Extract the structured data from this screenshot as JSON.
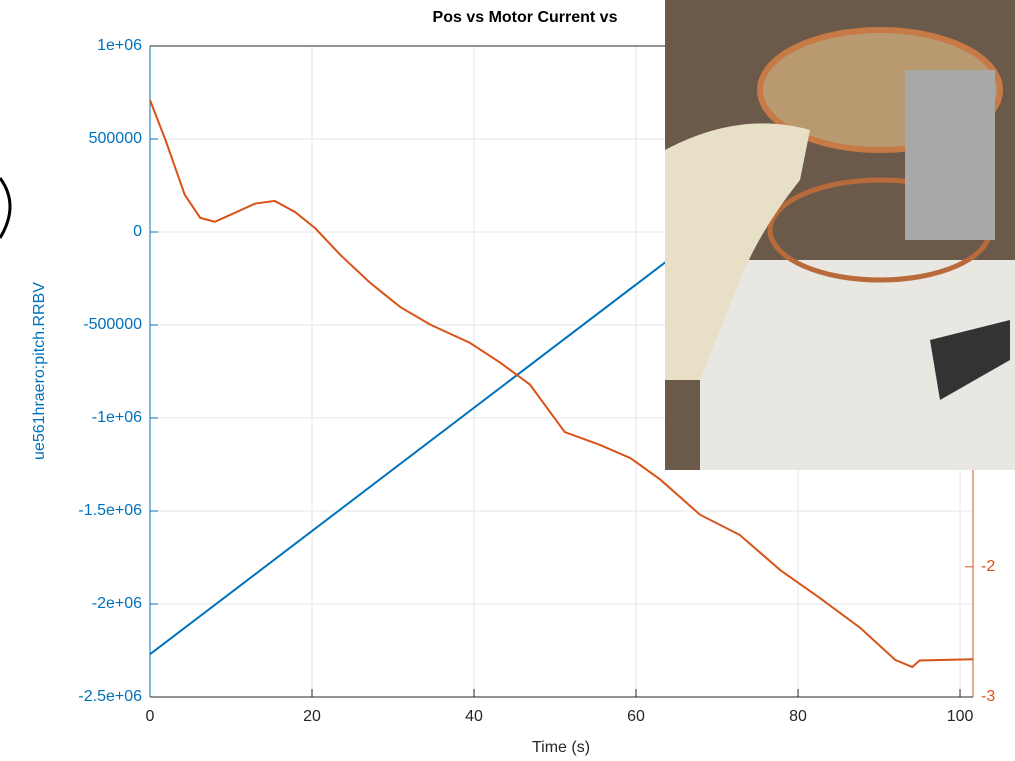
{
  "chart_data": {
    "type": "line",
    "title": "Pos vs Motor Current vs",
    "xlabel": "Time (s)",
    "ylabel": "ue561hraero:pitch.RRBV",
    "xlim": [
      0,
      101.6
    ],
    "xticks": [
      0,
      20,
      40,
      60,
      80,
      100
    ],
    "ylim": [
      -2500000,
      1000000
    ],
    "yticks": [
      {
        "value": -2500000,
        "label": "-2.5e+06"
      },
      {
        "value": -2000000,
        "label": "-2e+06"
      },
      {
        "value": -1500000,
        "label": "-1.5e+06"
      },
      {
        "value": -1000000,
        "label": "-1e+06"
      },
      -500000,
      0,
      500000,
      {
        "value": 1000000,
        "label": "1e+06"
      }
    ],
    "y2lim": [
      -3,
      2
    ],
    "y2ticks": [
      -3,
      -2
    ],
    "grid": true,
    "series": [
      {
        "color": "#0072bd",
        "axis": "y",
        "x": [
          0,
          64
        ],
        "values": [
          -2270000,
          -150000
        ]
      },
      {
        "color": "#d95319",
        "axis": "y2",
        "x": [
          0,
          1.9,
          4.3,
          6.2,
          8,
          10.5,
          13,
          15.4,
          17.9,
          20.4,
          23.5,
          27.2,
          30.9,
          34.6,
          39.5,
          43.2,
          46.9,
          51.2,
          55.6,
          59.3,
          63,
          67.9,
          72.8,
          77.8,
          82.7,
          87.7,
          92,
          94.1,
          95,
          101.6
        ],
        "values": [
          1.585,
          1.28,
          0.856,
          0.68,
          0.65,
          0.72,
          0.79,
          0.81,
          0.725,
          0.6,
          0.395,
          0.18,
          -0.005,
          -0.14,
          -0.28,
          -0.43,
          -0.6,
          -0.965,
          -1.065,
          -1.165,
          -1.33,
          -1.6,
          -1.755,
          -2.025,
          -2.24,
          -2.47,
          -2.715,
          -2.77,
          -2.72,
          -2.71
        ]
      }
    ]
  }
}
